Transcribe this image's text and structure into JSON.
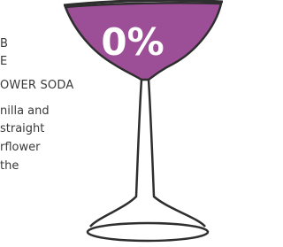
{
  "badge": "0%",
  "text_lines": [
    "B",
    "E",
    "OWER SODA",
    "nilla and",
    "straight",
    "rflower",
    "the"
  ]
}
